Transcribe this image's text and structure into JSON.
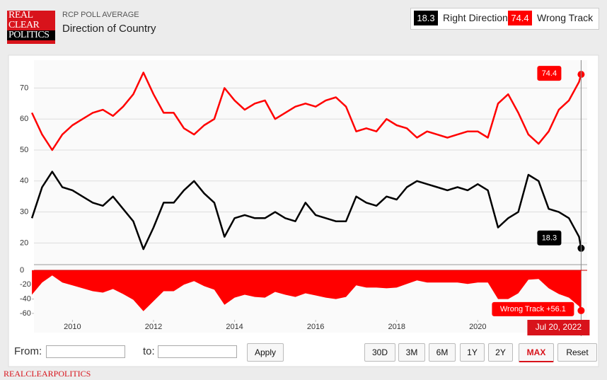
{
  "header": {
    "logo": [
      "REAL",
      "CLEAR",
      "POLITICS"
    ],
    "source": "RCP POLL AVERAGE",
    "title": "Direction of Country"
  },
  "chart_data": [
    {
      "type": "line",
      "x": [
        2009,
        2009.25,
        2009.5,
        2009.75,
        2010,
        2010.25,
        2010.5,
        2010.75,
        2011,
        2011.25,
        2011.5,
        2011.75,
        2012,
        2012.25,
        2012.5,
        2012.75,
        2013,
        2013.25,
        2013.5,
        2013.75,
        2014,
        2014.25,
        2014.5,
        2014.75,
        2015,
        2015.25,
        2015.5,
        2015.75,
        2016,
        2016.25,
        2016.5,
        2016.75,
        2017,
        2017.25,
        2017.5,
        2017.75,
        2018,
        2018.25,
        2018.5,
        2018.75,
        2019,
        2019.25,
        2019.5,
        2019.75,
        2020,
        2020.25,
        2020.5,
        2020.75,
        2021,
        2021.25,
        2021.5,
        2021.75,
        2022,
        2022.25,
        2022.5,
        2022.55
      ],
      "series": [
        {
          "name": "Right Direction",
          "color": "#000000",
          "values": [
            28,
            38,
            43,
            38,
            37,
            35,
            33,
            32,
            35,
            31,
            27,
            18,
            25,
            33,
            33,
            37,
            40,
            36,
            33,
            22,
            28,
            29,
            28,
            28,
            30,
            28,
            27,
            33,
            29,
            28,
            27,
            27,
            35,
            33,
            32,
            35,
            34,
            38,
            40,
            39,
            38,
            37,
            38,
            37,
            39,
            37,
            25,
            28,
            30,
            42,
            40,
            31,
            30,
            28,
            22,
            18.3
          ]
        },
        {
          "name": "Wrong Track",
          "color": "#ff0000",
          "values": [
            62,
            55,
            50,
            55,
            58,
            60,
            62,
            63,
            61,
            64,
            68,
            75,
            68,
            62,
            62,
            57,
            55,
            58,
            60,
            70,
            66,
            63,
            65,
            66,
            60,
            62,
            64,
            65,
            64,
            66,
            67,
            64,
            56,
            57,
            56,
            60,
            58,
            57,
            54,
            56,
            55,
            54,
            55,
            56,
            56,
            54,
            65,
            68,
            62,
            55,
            52,
            56,
            63,
            66,
            72,
            74.4
          ]
        }
      ],
      "xlim": [
        2009.05,
        2022.7
      ],
      "ylim": [
        13,
        79
      ],
      "yticks": [
        20,
        30,
        40,
        50,
        60,
        70
      ],
      "grid": true
    },
    {
      "type": "area",
      "name": "Wrong Track",
      "color": "#ff0000",
      "x": [
        2009,
        2009.25,
        2009.5,
        2009.75,
        2010,
        2010.25,
        2010.5,
        2010.75,
        2011,
        2011.25,
        2011.5,
        2011.75,
        2012,
        2012.25,
        2012.5,
        2012.75,
        2013,
        2013.25,
        2013.5,
        2013.75,
        2014,
        2014.25,
        2014.5,
        2014.75,
        2015,
        2015.25,
        2015.5,
        2015.75,
        2016,
        2016.25,
        2016.5,
        2016.75,
        2017,
        2017.25,
        2017.5,
        2017.75,
        2018,
        2018.25,
        2018.5,
        2018.75,
        2019,
        2019.25,
        2019.5,
        2019.75,
        2020,
        2020.25,
        2020.5,
        2020.75,
        2021,
        2021.25,
        2021.5,
        2021.75,
        2022,
        2022.25,
        2022.5,
        2022.55
      ],
      "values": [
        -34,
        -17,
        -7,
        -17,
        -21,
        -25,
        -29,
        -31,
        -26,
        -33,
        -41,
        -57,
        -43,
        -29,
        -29,
        -20,
        -15,
        -22,
        -27,
        -48,
        -38,
        -34,
        -37,
        -38,
        -30,
        -34,
        -37,
        -32,
        -35,
        -38,
        -40,
        -37,
        -21,
        -24,
        -24,
        -25,
        -24,
        -19,
        -14,
        -17,
        -17,
        -17,
        -17,
        -19,
        -17,
        -17,
        -40,
        -40,
        -32,
        -13,
        -12,
        -25,
        -33,
        -38,
        -50,
        -56.1
      ],
      "end_label": "Wrong Track +56.1",
      "date_label": "Jul 20, 2022",
      "xlim": [
        2009.05,
        2022.7
      ],
      "xticks": [
        2010,
        2012,
        2014,
        2016,
        2018,
        2020,
        2022
      ],
      "ylim": [
        -69,
        4
      ],
      "yticks": [
        0,
        -20,
        -40,
        -60
      ]
    }
  ],
  "controls": {
    "from": "From:",
    "to": "to:",
    "apply": "Apply",
    "ranges": [
      "30D",
      "3M",
      "6M",
      "1Y",
      "2Y",
      "MAX",
      "Reset"
    ]
  },
  "footer": "REALCLEARPOLITICS"
}
